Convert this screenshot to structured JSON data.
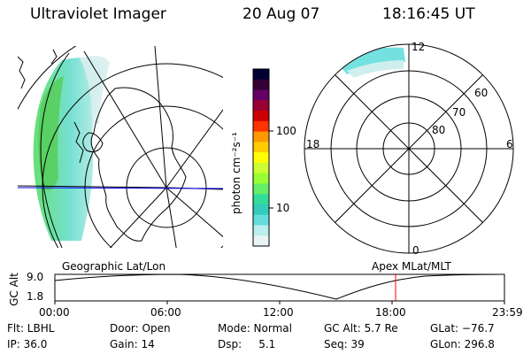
{
  "header": {
    "instrument": "Ultraviolet Imager",
    "date": "20 Aug 07",
    "time": "18:16:45 UT"
  },
  "left_panel": {
    "projection_label": "Geographic Lat/Lon"
  },
  "right_panel": {
    "projection_label": "Apex MLat/MLT",
    "mlt_labels": [
      "12",
      "18",
      "6",
      "0"
    ],
    "mlat_labels": [
      "60",
      "70",
      "80"
    ]
  },
  "colorbar": {
    "unit_label": "photon cm⁻²s⁻¹",
    "tick_labels": [
      "100",
      "10"
    ],
    "colors": [
      "#000033",
      "#330033",
      "#660066",
      "#990033",
      "#cc0000",
      "#ff3300",
      "#ff9900",
      "#ffcc00",
      "#ffff00",
      "#ccff33",
      "#99ff33",
      "#66ee66",
      "#33dd99",
      "#33ccbb",
      "#66dddd",
      "#bbeeee",
      "#e8f4f4"
    ]
  },
  "timeline": {
    "axis_title": "GC Alt",
    "y_ticks": [
      "9.0",
      "1.8"
    ],
    "x_ticks": [
      "00:00",
      "06:00",
      "12:00",
      "18:00",
      "23:59"
    ]
  },
  "info": {
    "filter": "Flt: LBHL",
    "door": "Door: Open",
    "mode": "Mode: Normal",
    "gc_alt": "GC Alt: 5.7 Re",
    "glat": "GLat: −76.7",
    "ip": "IP: 36.0",
    "gain": "Gain: 14",
    "dsp": "Dsp:     5.1",
    "seq": "Seq: 39",
    "glon": "GLon: 296.8"
  }
}
